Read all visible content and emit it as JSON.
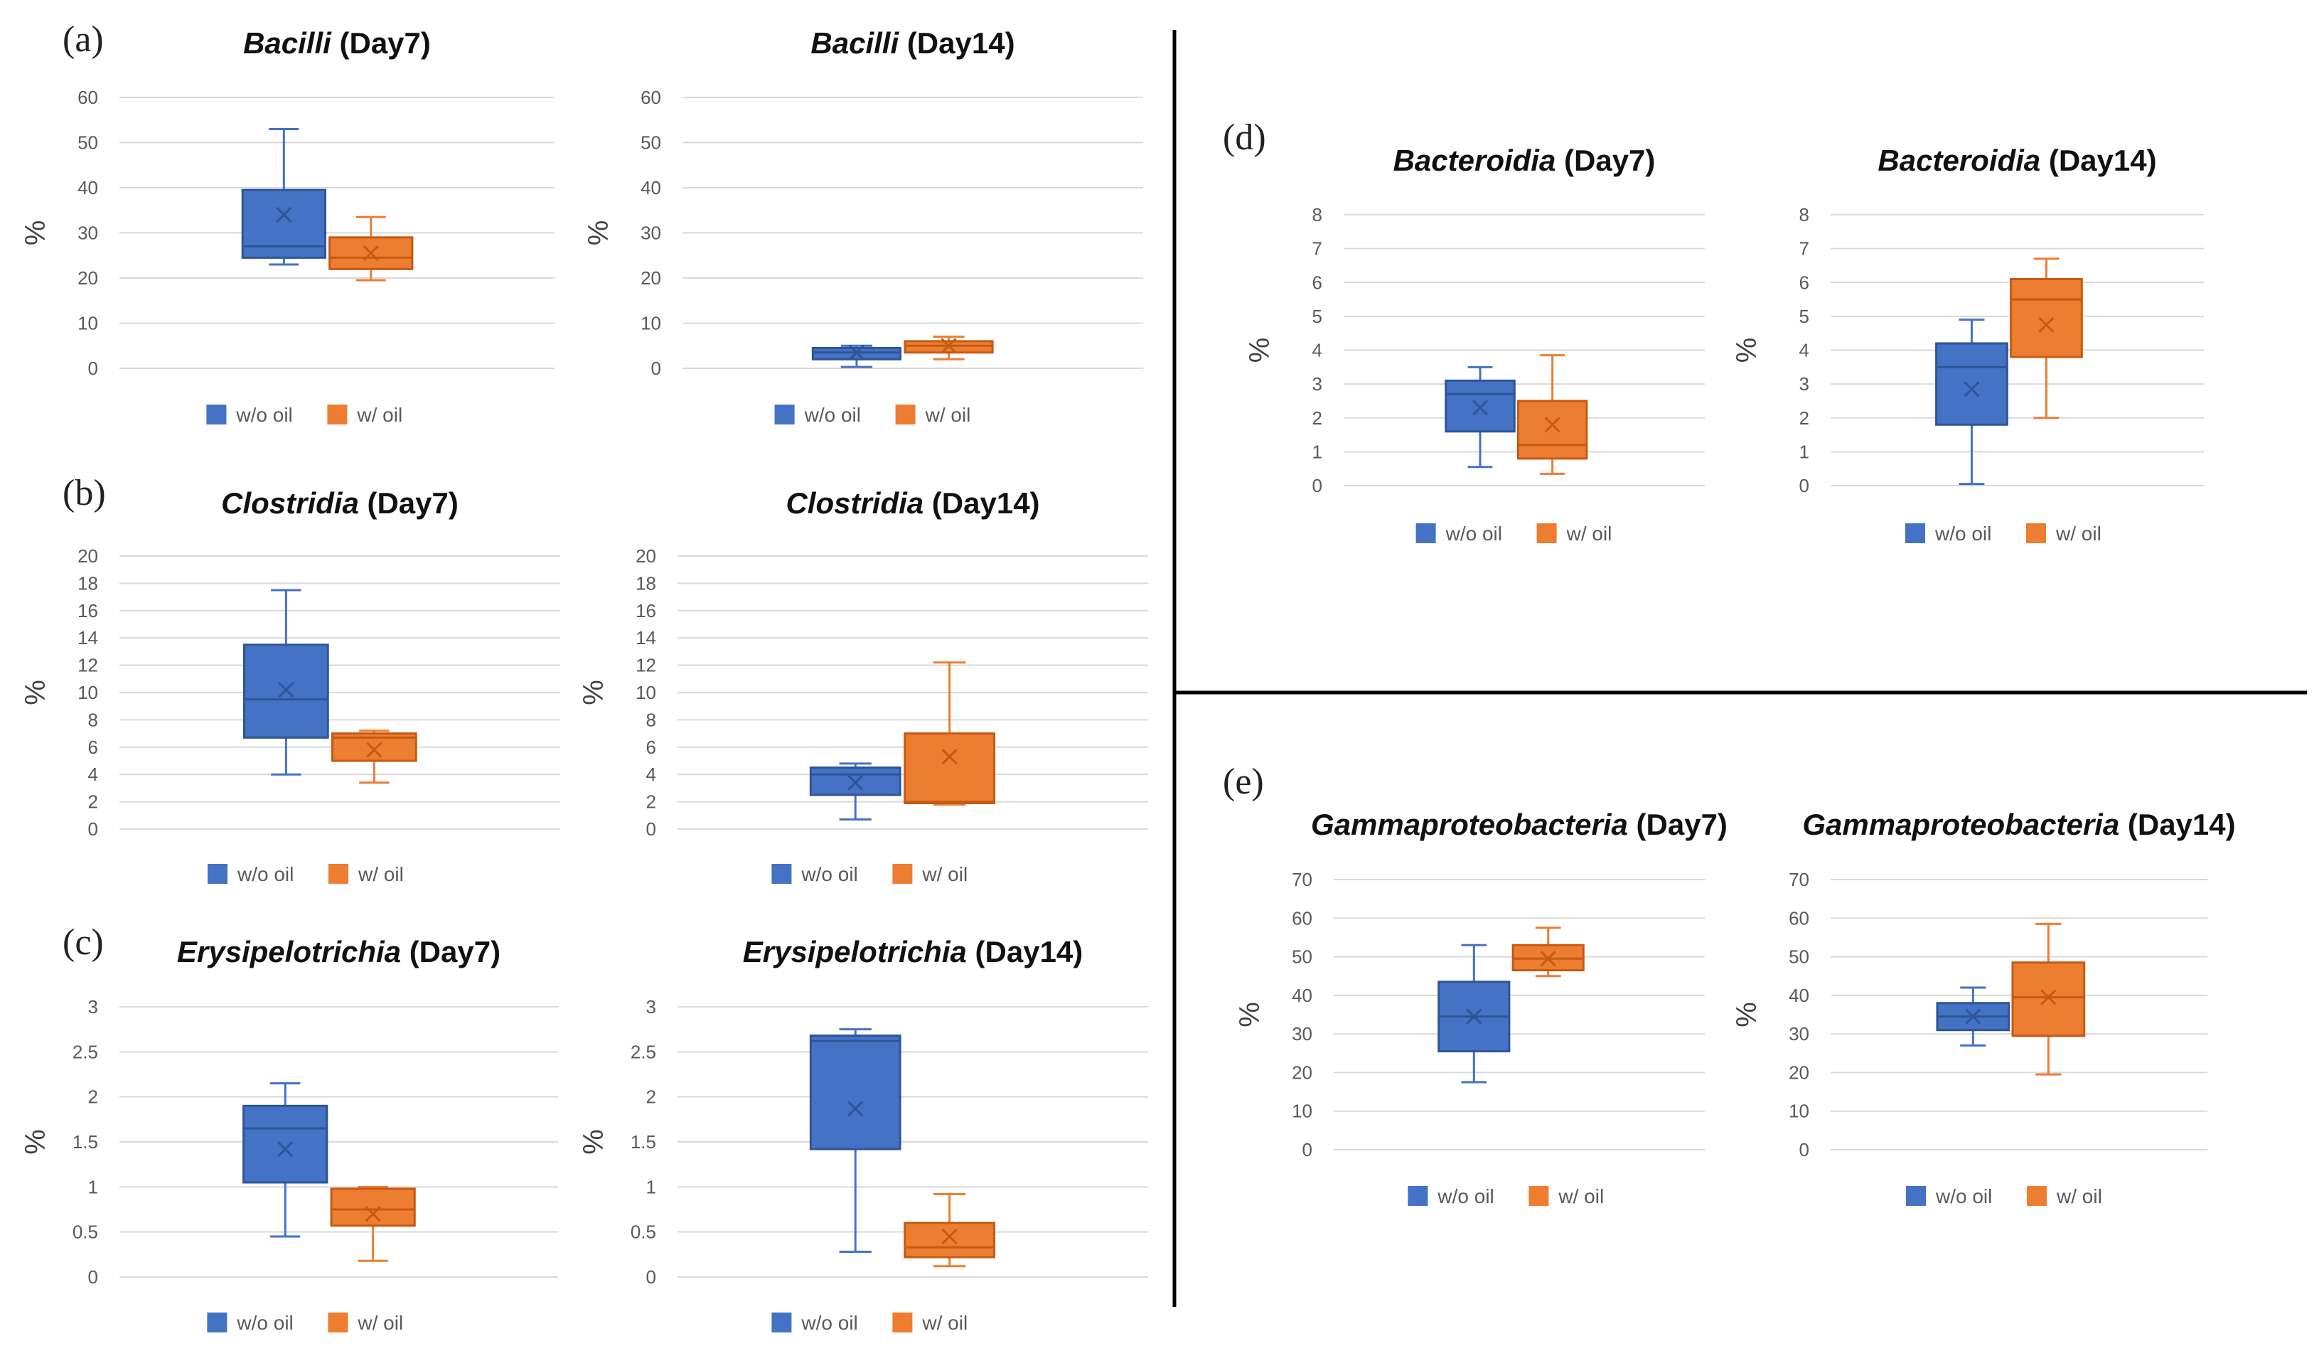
{
  "figure": {
    "colors": {
      "wo_oil": "#4472C4",
      "w_oil": "#ED7D31",
      "grid": "#d9d9d9",
      "axis_text": "#595959",
      "divider": "#000000"
    },
    "ylabel": "%",
    "legend": {
      "wo_oil": "w/o oil",
      "w_oil": "w/ oil"
    }
  },
  "panel_labels": [
    "(a)",
    "(b)",
    "(c)",
    "(d)",
    "(e)"
  ],
  "chart_data": [
    {
      "id": "bacilli-day7",
      "type": "box",
      "title": {
        "taxon": "Bacilli",
        "day": "(Day7)"
      },
      "ylabel": "%",
      "ylim": [
        0,
        60
      ],
      "yticks": [
        0,
        10,
        20,
        30,
        40,
        50,
        60
      ],
      "series": [
        {
          "name": "w/o oil",
          "min": 23,
          "q1": 24.5,
          "median": 27,
          "q3": 39.5,
          "max": 53,
          "mean": 34
        },
        {
          "name": "w/ oil",
          "min": 19.5,
          "q1": 22,
          "median": 24.5,
          "q3": 29,
          "max": 33.5,
          "mean": 25.5
        }
      ]
    },
    {
      "id": "bacilli-day14",
      "type": "box",
      "title": {
        "taxon": "Bacilli",
        "day": "(Day14)"
      },
      "ylabel": "%",
      "ylim": [
        0,
        60
      ],
      "yticks": [
        0,
        10,
        20,
        30,
        40,
        50,
        60
      ],
      "series": [
        {
          "name": "w/o oil",
          "min": 0.3,
          "q1": 2,
          "median": 3.5,
          "q3": 4.5,
          "max": 5,
          "mean": 3.5
        },
        {
          "name": "w/ oil",
          "min": 2,
          "q1": 3.5,
          "median": 5,
          "q3": 6,
          "max": 7,
          "mean": 5
        }
      ]
    },
    {
      "id": "clostridia-day7",
      "type": "box",
      "title": {
        "taxon": "Clostridia",
        "day": "(Day7)"
      },
      "ylabel": "%",
      "ylim": [
        0,
        20
      ],
      "yticks": [
        0,
        2,
        4,
        6,
        8,
        10,
        12,
        14,
        16,
        18,
        20
      ],
      "series": [
        {
          "name": "w/o oil",
          "min": 4,
          "q1": 6.7,
          "median": 9.5,
          "q3": 13.5,
          "max": 17.5,
          "mean": 10.2
        },
        {
          "name": "w/ oil",
          "min": 3.4,
          "q1": 5,
          "median": 6.7,
          "q3": 7,
          "max": 7.2,
          "mean": 5.8
        }
      ]
    },
    {
      "id": "clostridia-day14",
      "type": "box",
      "title": {
        "taxon": "Clostridia",
        "day": "(Day14)"
      },
      "ylabel": "%",
      "ylim": [
        0,
        20
      ],
      "yticks": [
        0,
        2,
        4,
        6,
        8,
        10,
        12,
        14,
        16,
        18,
        20
      ],
      "series": [
        {
          "name": "w/o oil",
          "min": 0.7,
          "q1": 2.5,
          "median": 4,
          "q3": 4.5,
          "max": 4.8,
          "mean": 3.4
        },
        {
          "name": "w/ oil",
          "min": 1.8,
          "q1": 1.9,
          "median": 2,
          "q3": 7,
          "max": 12.2,
          "mean": 5.3
        }
      ]
    },
    {
      "id": "erysipelotrichia-day7",
      "type": "box",
      "title": {
        "taxon": "Erysipelotrichia",
        "day": "(Day7)"
      },
      "ylabel": "%",
      "ylim": [
        0,
        3
      ],
      "yticks": [
        0,
        0.5,
        1,
        1.5,
        2,
        2.5,
        3
      ],
      "series": [
        {
          "name": "w/o oil",
          "min": 0.45,
          "q1": 1.05,
          "median": 1.65,
          "q3": 1.9,
          "max": 2.15,
          "mean": 1.42
        },
        {
          "name": "w/ oil",
          "min": 0.18,
          "q1": 0.57,
          "median": 0.75,
          "q3": 0.98,
          "max": 1.0,
          "mean": 0.7
        }
      ]
    },
    {
      "id": "erysipelotrichia-day14",
      "type": "box",
      "title": {
        "taxon": "Erysipelotrichia",
        "day": "(Day14)"
      },
      "ylabel": "%",
      "ylim": [
        0,
        3
      ],
      "yticks": [
        0,
        0.5,
        1,
        1.5,
        2,
        2.5,
        3
      ],
      "series": [
        {
          "name": "w/o oil",
          "min": 0.28,
          "q1": 1.42,
          "median": 2.62,
          "q3": 2.68,
          "max": 2.75,
          "mean": 1.87
        },
        {
          "name": "w/ oil",
          "min": 0.12,
          "q1": 0.22,
          "median": 0.33,
          "q3": 0.6,
          "max": 0.92,
          "mean": 0.45
        }
      ]
    },
    {
      "id": "bacteroidia-day7",
      "type": "box",
      "title": {
        "taxon": "Bacteroidia",
        "day": "(Day7)"
      },
      "ylabel": "%",
      "ylim": [
        0,
        8
      ],
      "yticks": [
        0,
        1,
        2,
        3,
        4,
        5,
        6,
        7,
        8
      ],
      "series": [
        {
          "name": "w/o oil",
          "min": 0.55,
          "q1": 1.6,
          "median": 2.7,
          "q3": 3.1,
          "max": 3.5,
          "mean": 2.3
        },
        {
          "name": "w/ oil",
          "min": 0.35,
          "q1": 0.8,
          "median": 1.2,
          "q3": 2.5,
          "max": 3.85,
          "mean": 1.8
        }
      ]
    },
    {
      "id": "bacteroidia-day14",
      "type": "box",
      "title": {
        "taxon": "Bacteroidia",
        "day": "(Day14)"
      },
      "ylabel": "%",
      "ylim": [
        0,
        8
      ],
      "yticks": [
        0,
        1,
        2,
        3,
        4,
        5,
        6,
        7,
        8
      ],
      "series": [
        {
          "name": "w/o oil",
          "min": 0.05,
          "q1": 1.8,
          "median": 3.5,
          "q3": 4.2,
          "max": 4.9,
          "mean": 2.85
        },
        {
          "name": "w/ oil",
          "min": 2,
          "q1": 3.8,
          "median": 5.5,
          "q3": 6.1,
          "max": 6.7,
          "mean": 4.75
        }
      ]
    },
    {
      "id": "gammaproteobacteria-day7",
      "type": "box",
      "title": {
        "taxon": "Gammaproteobacteria",
        "day": "(Day7)"
      },
      "ylabel": "%",
      "ylim": [
        0,
        70
      ],
      "yticks": [
        0,
        10,
        20,
        30,
        40,
        50,
        60,
        70
      ],
      "series": [
        {
          "name": "w/o oil",
          "min": 17.5,
          "q1": 25.5,
          "median": 34.5,
          "q3": 43.5,
          "max": 53,
          "mean": 34.5
        },
        {
          "name": "w/ oil",
          "min": 45,
          "q1": 46.5,
          "median": 49.5,
          "q3": 53,
          "max": 57.5,
          "mean": 49.5
        }
      ]
    },
    {
      "id": "gammaproteobacteria-day14",
      "type": "box",
      "title": {
        "taxon": "Gammaproteobacteria",
        "day": "(Day14)"
      },
      "ylabel": "%",
      "ylim": [
        0,
        70
      ],
      "yticks": [
        0,
        10,
        20,
        30,
        40,
        50,
        60,
        70
      ],
      "series": [
        {
          "name": "w/o oil",
          "min": 27,
          "q1": 31,
          "median": 34.5,
          "q3": 38,
          "max": 42,
          "mean": 34.5
        },
        {
          "name": "w/ oil",
          "min": 19.5,
          "q1": 29.5,
          "median": 39.5,
          "q3": 48.5,
          "max": 58.5,
          "mean": 39.5
        }
      ]
    }
  ]
}
